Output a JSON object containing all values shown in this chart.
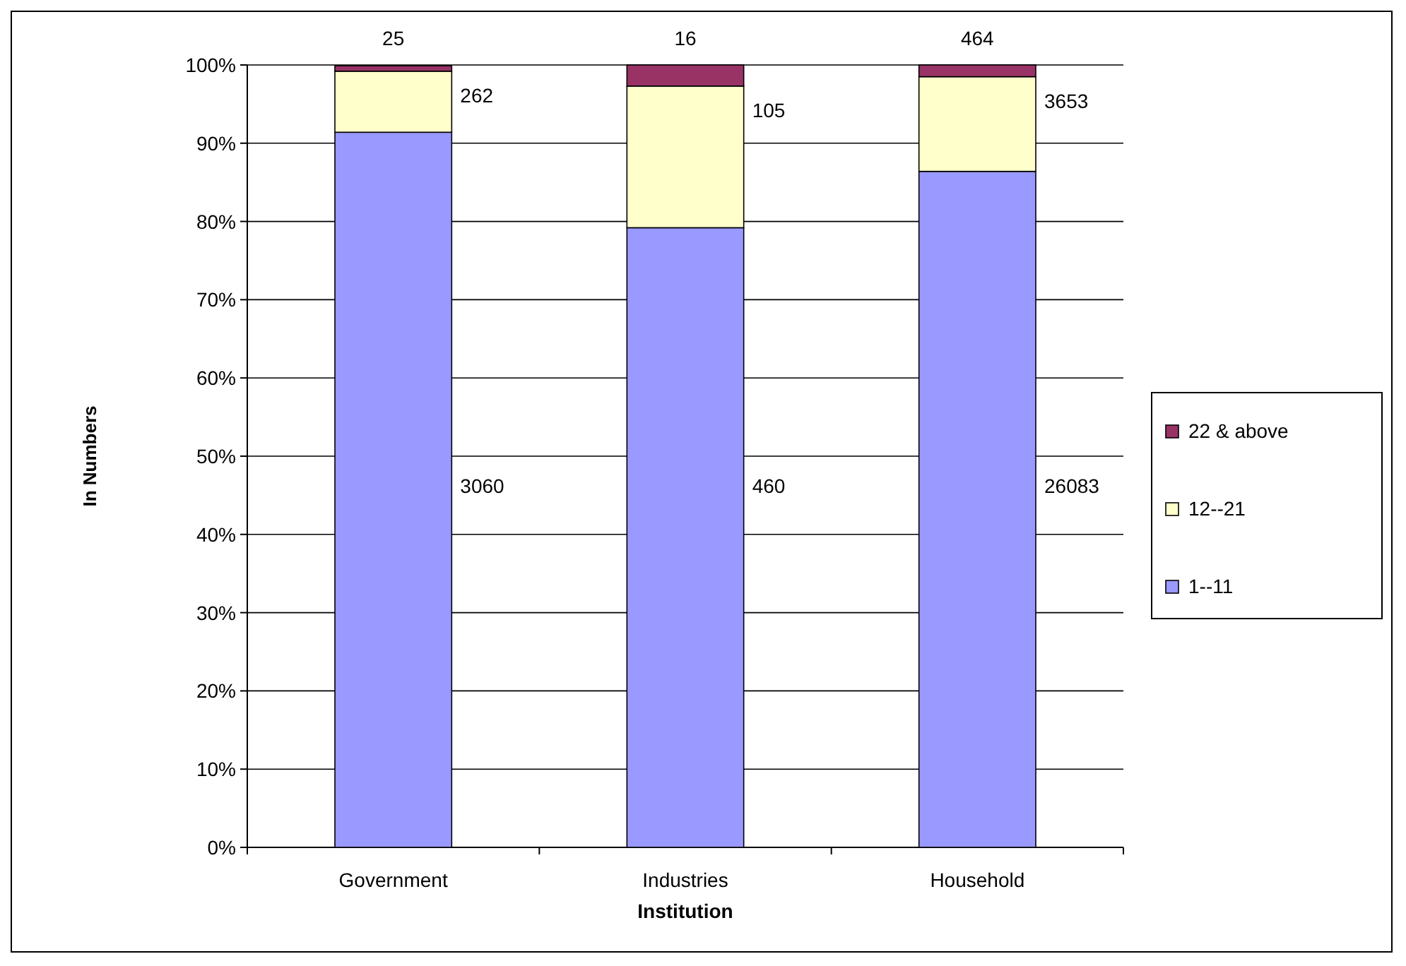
{
  "chart_data": {
    "type": "bar",
    "stacked": true,
    "xlabel": "Institution",
    "ylabel": "In Numbers",
    "categories": [
      "Government",
      "Industries",
      "Household"
    ],
    "series": [
      {
        "name": "1--11",
        "color": "#9999ff",
        "values": [
          91.4,
          79.2,
          86.4
        ]
      },
      {
        "name": "12--21",
        "color": "#ffffcc",
        "values": [
          7.8,
          18.1,
          12.1
        ]
      },
      {
        "name": "22 & above",
        "color": "#993366",
        "values": [
          0.7,
          2.7,
          1.5
        ]
      }
    ],
    "annotations": [
      "3060",
      "262",
      "25",
      "460",
      "105",
      "16",
      "26083",
      "3653",
      "464"
    ],
    "ylim": [
      0,
      100
    ],
    "yticks": [
      {
        "value": 0,
        "label": "0%"
      },
      {
        "value": 10,
        "label": "10%"
      },
      {
        "value": 20,
        "label": "20%"
      },
      {
        "value": 30,
        "label": "30%"
      },
      {
        "value": 40,
        "label": "40%"
      },
      {
        "value": 50,
        "label": "50%"
      },
      {
        "value": 60,
        "label": "60%"
      },
      {
        "value": 70,
        "label": "70%"
      },
      {
        "value": 80,
        "label": "80%"
      },
      {
        "value": 90,
        "label": "90%"
      },
      {
        "value": 100,
        "label": "100%"
      }
    ],
    "grid": "y",
    "legend": "right"
  }
}
